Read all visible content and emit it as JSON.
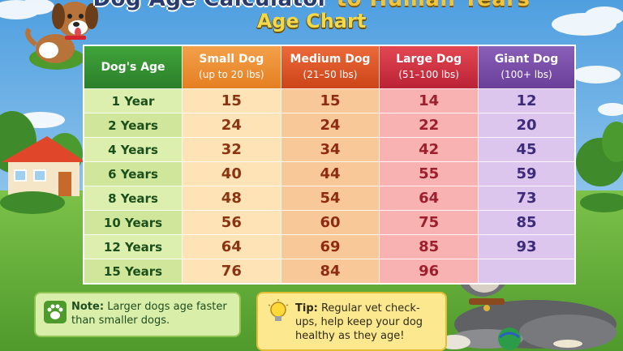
{
  "header": {
    "title_main": "Dog Age Calculator",
    "title_accent": "to Human Years",
    "subtitle": "Age Chart"
  },
  "table": {
    "headers": [
      {
        "label": "Dog's Age",
        "size": ""
      },
      {
        "label": "Small Dog",
        "size": "(up to 20 lbs)"
      },
      {
        "label": "Medium Dog",
        "size": "(21–50 lbs)"
      },
      {
        "label": "Large Dog",
        "size": "(51–100 lbs)"
      },
      {
        "label": "Giant Dog",
        "size": "(100+ lbs)"
      }
    ],
    "rows": [
      {
        "age": "1 Year",
        "small": "15",
        "medium": "15",
        "large": "14",
        "giant": "12"
      },
      {
        "age": "2 Years",
        "small": "24",
        "medium": "24",
        "large": "22",
        "giant": "20"
      },
      {
        "age": "4 Years",
        "small": "32",
        "medium": "34",
        "large": "42",
        "giant": "45"
      },
      {
        "age": "6 Years",
        "small": "40",
        "medium": "44",
        "large": "55",
        "giant": "59"
      },
      {
        "age": "8 Years",
        "small": "48",
        "medium": "54",
        "large": "64",
        "giant": "73"
      },
      {
        "age": "10 Years",
        "small": "56",
        "medium": "60",
        "large": "75",
        "giant": "85"
      },
      {
        "age": "12 Years",
        "small": "64",
        "medium": "69",
        "large": "85",
        "giant": "93"
      },
      {
        "age": "15 Years",
        "small": "76",
        "medium": "84",
        "large": "96",
        "giant": ""
      }
    ]
  },
  "note": {
    "label": "Note:",
    "text": "Larger dogs age faster than smaller dogs."
  },
  "tip": {
    "label": "Tip:",
    "text": "Regular vet check-ups, help keep your dog healthy as they age!"
  },
  "icons": {
    "note": "paw-icon",
    "tip": "lightbulb-icon"
  },
  "colors": {
    "age_header": "#2b7f2a",
    "small_header": "#e57f21",
    "medium_header": "#cc4418",
    "large_header": "#bb2235",
    "giant_header": "#6a3f99"
  }
}
